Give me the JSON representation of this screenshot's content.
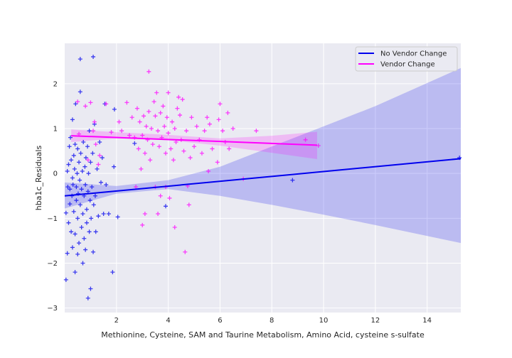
{
  "chart_data": {
    "type": "scatter",
    "xlabel": "Methionine, Cysteine, SAM and Taurine Metabolism, Amino Acid, cysteine s-sulfate",
    "ylabel": "hba1c_Residuals",
    "xlim": [
      0.0,
      15.3
    ],
    "ylim": [
      -3.1,
      2.9
    ],
    "xticks": [
      2,
      4,
      6,
      8,
      10,
      12,
      14
    ],
    "yticks": [
      -3,
      -2,
      -1,
      0,
      1,
      2
    ],
    "grid": true,
    "legend_position": "top-right",
    "series": [
      {
        "name": "No Vendor Change",
        "color": "#0000ee",
        "marker": "+",
        "fit_line": {
          "x": [
            0.0,
            15.3
          ],
          "y": [
            -0.5,
            0.33
          ]
        },
        "ci_band": {
          "x": [
            0.0,
            2.0,
            4.0,
            6.0,
            8.0,
            10.0,
            12.0,
            15.3
          ],
          "lower": [
            -0.78,
            -0.45,
            -0.35,
            -0.5,
            -0.7,
            -0.92,
            -1.15,
            -1.55
          ],
          "upper": [
            -0.2,
            -0.28,
            -0.15,
            0.15,
            0.6,
            1.05,
            1.5,
            2.35
          ]
        },
        "points": [
          [
            0.05,
            -2.37
          ],
          [
            0.05,
            -0.88
          ],
          [
            0.1,
            -1.78
          ],
          [
            0.1,
            0.05
          ],
          [
            0.12,
            -0.3
          ],
          [
            0.15,
            -1.1
          ],
          [
            0.15,
            0.2
          ],
          [
            0.18,
            0.6
          ],
          [
            0.2,
            -0.35
          ],
          [
            0.2,
            -0.68
          ],
          [
            0.22,
            0.8
          ],
          [
            0.25,
            -1.3
          ],
          [
            0.25,
            0.3
          ],
          [
            0.28,
            -0.5
          ],
          [
            0.3,
            1.2
          ],
          [
            0.3,
            -0.1
          ],
          [
            0.3,
            -1.65
          ],
          [
            0.32,
            -0.25
          ],
          [
            0.35,
            0.4
          ],
          [
            0.35,
            -0.85
          ],
          [
            0.38,
            0.1
          ],
          [
            0.4,
            -2.2
          ],
          [
            0.4,
            -1.35
          ],
          [
            0.4,
            0.65
          ],
          [
            0.42,
            1.55
          ],
          [
            0.45,
            -0.6
          ],
          [
            0.45,
            -0.3
          ],
          [
            0.48,
            0.0
          ],
          [
            0.5,
            -1.0
          ],
          [
            0.5,
            0.55
          ],
          [
            0.5,
            -1.8
          ],
          [
            0.52,
            -0.45
          ],
          [
            0.55,
            0.25
          ],
          [
            0.55,
            -1.55
          ],
          [
            0.58,
            -0.15
          ],
          [
            0.6,
            1.82
          ],
          [
            0.6,
            2.55
          ],
          [
            0.6,
            -0.7
          ],
          [
            0.62,
            0.45
          ],
          [
            0.65,
            -1.2
          ],
          [
            0.65,
            -0.35
          ],
          [
            0.68,
            0.05
          ],
          [
            0.7,
            -2.0
          ],
          [
            0.7,
            -0.9
          ],
          [
            0.72,
            0.7
          ],
          [
            0.75,
            -0.5
          ],
          [
            0.75,
            -1.45
          ],
          [
            0.78,
            0.15
          ],
          [
            0.8,
            -0.25
          ],
          [
            0.8,
            -1.7
          ],
          [
            0.82,
            0.35
          ],
          [
            0.85,
            -0.8
          ],
          [
            0.85,
            -1.1
          ],
          [
            0.88,
            0.6
          ],
          [
            0.9,
            -2.78
          ],
          [
            0.9,
            -0.4
          ],
          [
            0.92,
            0.0
          ],
          [
            0.95,
            -1.3
          ],
          [
            0.95,
            0.95
          ],
          [
            0.98,
            -0.6
          ],
          [
            1.0,
            -2.57
          ],
          [
            1.0,
            0.25
          ],
          [
            1.02,
            -1.0
          ],
          [
            1.05,
            -0.3
          ],
          [
            1.08,
            0.45
          ],
          [
            1.1,
            -1.75
          ],
          [
            1.1,
            2.6
          ],
          [
            1.12,
            -0.7
          ],
          [
            1.15,
            1.1
          ],
          [
            1.18,
            -0.5
          ],
          [
            1.2,
            -1.3
          ],
          [
            1.25,
            0.1
          ],
          [
            1.3,
            -0.95
          ],
          [
            1.35,
            0.7
          ],
          [
            1.4,
            -0.2
          ],
          [
            1.45,
            0.35
          ],
          [
            1.5,
            -0.9
          ],
          [
            1.55,
            1.55
          ],
          [
            1.6,
            -0.25
          ],
          [
            1.7,
            -0.9
          ],
          [
            1.85,
            -2.2
          ],
          [
            1.9,
            0.15
          ],
          [
            1.92,
            1.43
          ],
          [
            2.05,
            -0.97
          ],
          [
            2.7,
            0.67
          ],
          [
            3.9,
            -0.73
          ],
          [
            8.8,
            -0.15
          ],
          [
            15.25,
            0.35
          ]
        ]
      },
      {
        "name": "Vendor Change",
        "color": "#ff00ff",
        "marker": "+",
        "fit_line": {
          "x": [
            0.25,
            9.75
          ],
          "y": [
            0.84,
            0.63
          ]
        },
        "ci_band": {
          "x": [
            0.25,
            2.0,
            4.0,
            6.0,
            8.0,
            9.75
          ],
          "lower": [
            0.7,
            0.78,
            0.74,
            0.62,
            0.46,
            0.32
          ],
          "upper": [
            0.98,
            0.92,
            0.86,
            0.78,
            0.84,
            0.93
          ]
        },
        "points": [
          [
            0.5,
            1.6
          ],
          [
            0.55,
            0.88
          ],
          [
            0.8,
            1.5
          ],
          [
            0.9,
            0.3
          ],
          [
            1.0,
            1.58
          ],
          [
            1.1,
            0.95
          ],
          [
            1.15,
            1.15
          ],
          [
            1.2,
            0.65
          ],
          [
            1.3,
            0.2
          ],
          [
            1.35,
            0.4
          ],
          [
            1.6,
            1.55
          ],
          [
            1.8,
            0.92
          ],
          [
            2.1,
            1.15
          ],
          [
            2.2,
            0.95
          ],
          [
            2.4,
            1.58
          ],
          [
            2.5,
            0.85
          ],
          [
            2.6,
            1.25
          ],
          [
            2.7,
            0.8
          ],
          [
            2.75,
            -0.3
          ],
          [
            2.8,
            1.45
          ],
          [
            2.85,
            0.55
          ],
          [
            2.9,
            1.15
          ],
          [
            2.95,
            0.1
          ],
          [
            3.0,
            -1.15
          ],
          [
            3.0,
            0.85
          ],
          [
            3.05,
            1.28
          ],
          [
            3.1,
            0.45
          ],
          [
            3.1,
            -0.9
          ],
          [
            3.15,
            1.05
          ],
          [
            3.2,
            0.75
          ],
          [
            3.25,
            1.38
          ],
          [
            3.25,
            2.27
          ],
          [
            3.3,
            0.3
          ],
          [
            3.35,
            1.0
          ],
          [
            3.4,
            0.65
          ],
          [
            3.45,
            1.6
          ],
          [
            3.5,
            1.28
          ],
          [
            3.5,
            -0.3
          ],
          [
            3.55,
            1.8
          ],
          [
            3.6,
            0.95
          ],
          [
            3.6,
            -0.9
          ],
          [
            3.65,
            0.6
          ],
          [
            3.7,
            1.35
          ],
          [
            3.7,
            -0.5
          ],
          [
            3.75,
            0.8
          ],
          [
            3.8,
            1.5
          ],
          [
            3.85,
            1.05
          ],
          [
            3.9,
            0.45
          ],
          [
            3.9,
            -0.3
          ],
          [
            3.95,
            1.25
          ],
          [
            4.0,
            0.9
          ],
          [
            4.0,
            1.8
          ],
          [
            4.05,
            -0.55
          ],
          [
            4.1,
            0.55
          ],
          [
            4.15,
            1.15
          ],
          [
            4.2,
            0.3
          ],
          [
            4.25,
            1.0
          ],
          [
            4.25,
            -1.2
          ],
          [
            4.3,
            0.7
          ],
          [
            4.35,
            1.45
          ],
          [
            4.4,
            1.7
          ],
          [
            4.45,
            1.3
          ],
          [
            4.5,
            0.75
          ],
          [
            4.55,
            1.65
          ],
          [
            4.6,
            0.5
          ],
          [
            4.65,
            -1.75
          ],
          [
            4.7,
            0.95
          ],
          [
            4.75,
            -0.28
          ],
          [
            4.8,
            -0.7
          ],
          [
            4.85,
            0.35
          ],
          [
            4.9,
            1.25
          ],
          [
            5.0,
            0.6
          ],
          [
            5.1,
            1.05
          ],
          [
            5.2,
            0.75
          ],
          [
            5.3,
            0.45
          ],
          [
            5.4,
            0.95
          ],
          [
            5.5,
            1.25
          ],
          [
            5.55,
            0.05
          ],
          [
            5.6,
            1.1
          ],
          [
            5.7,
            0.55
          ],
          [
            5.9,
            0.25
          ],
          [
            5.95,
            1.2
          ],
          [
            6.0,
            1.55
          ],
          [
            6.1,
            0.95
          ],
          [
            6.2,
            0.7
          ],
          [
            6.3,
            1.35
          ],
          [
            6.35,
            0.55
          ],
          [
            6.5,
            1.0
          ],
          [
            6.9,
            -0.12
          ],
          [
            7.4,
            0.95
          ],
          [
            9.3,
            0.75
          ],
          [
            9.8,
            0.62
          ]
        ]
      }
    ]
  }
}
